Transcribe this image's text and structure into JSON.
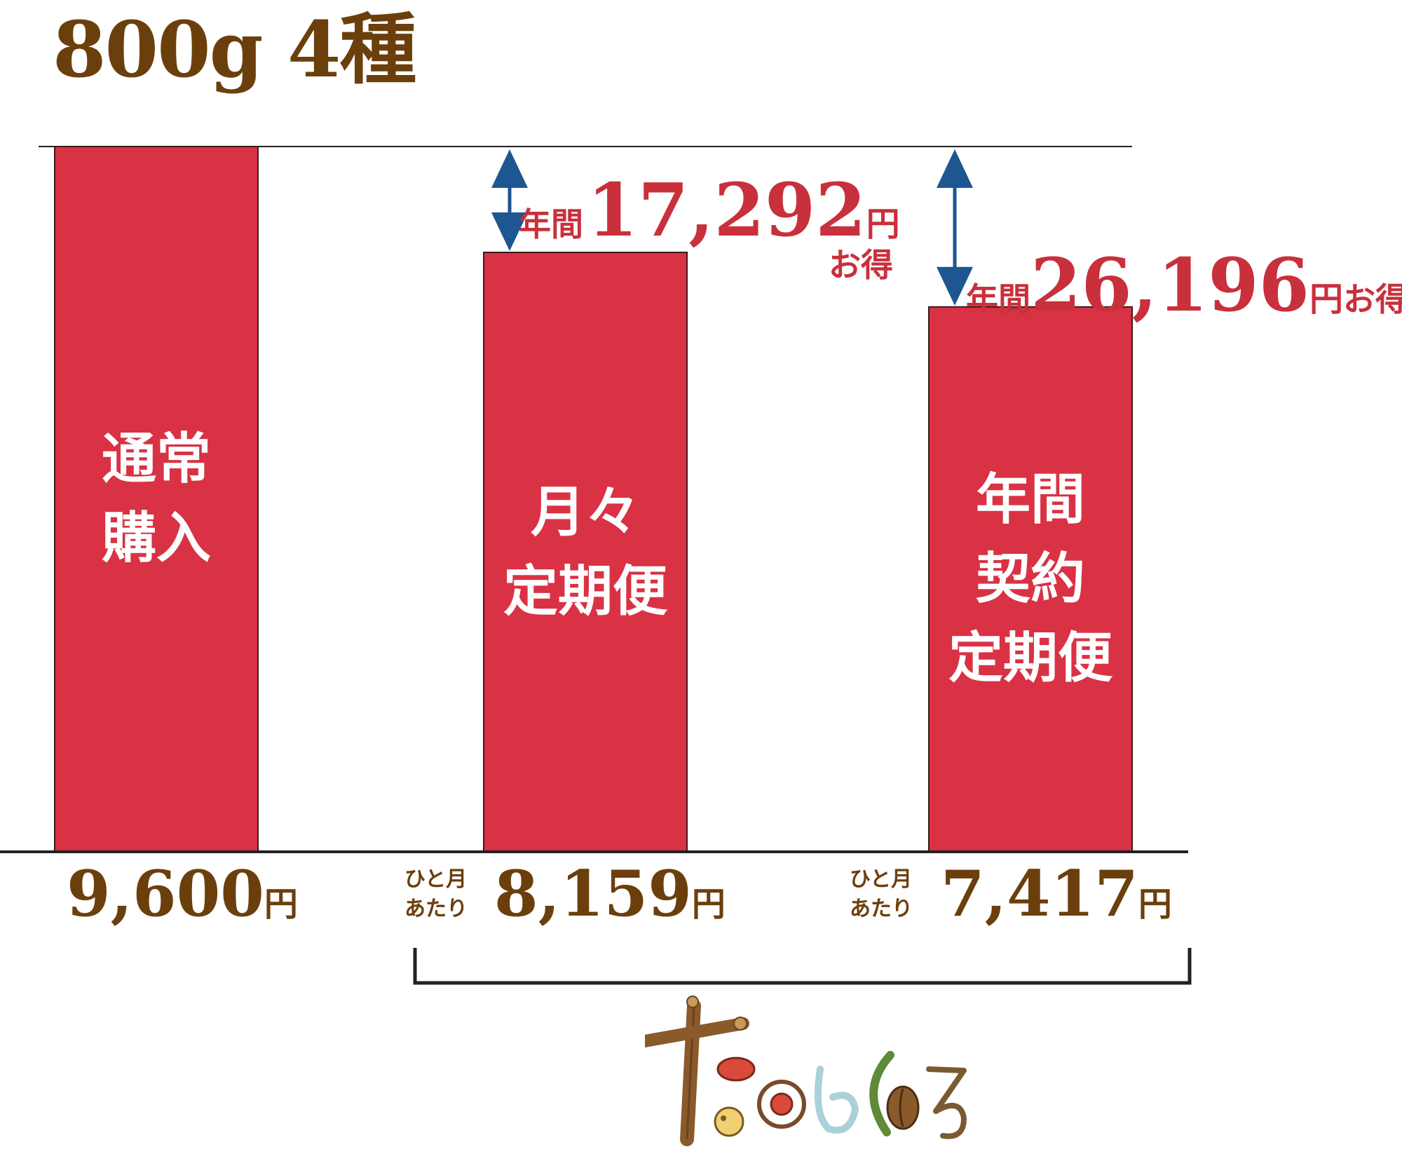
{
  "title": "800g 4種",
  "colors": {
    "bar": "#d93244",
    "arrow": "#1d5691",
    "brown": "#6b3f0c",
    "saving": "#c8303c"
  },
  "chart_data": {
    "type": "bar",
    "categories": [
      "通常購入",
      "月々定期便",
      "年間契約定期便"
    ],
    "values": [
      9600,
      8159,
      7417
    ],
    "ylim": [
      0,
      9600
    ],
    "grid": false,
    "bars": [
      {
        "label": "通常購入",
        "label_lines": "通常\n購入",
        "value": 9600,
        "note": "",
        "value_text": "9,600",
        "unit": "円"
      },
      {
        "label": "月々定期便",
        "label_lines": "月々\n定期便",
        "value": 8159,
        "note": "ひと月\nあたり",
        "value_text": "8,159",
        "unit": "円"
      },
      {
        "label": "年間契約定期便",
        "label_lines": "年間\n契約\n定期便",
        "value": 7417,
        "note": "ひと月\nあたり",
        "value_text": "7,417",
        "unit": "円"
      }
    ],
    "annotations": [
      {
        "prefix": "年間",
        "amount": "17,292",
        "unit": "円",
        "suffix": "お得",
        "value": 17292
      },
      {
        "prefix": "年間",
        "amount": "26,196",
        "unit": "円",
        "suffix": "お得",
        "value": 26196
      }
    ]
  },
  "logo": {
    "icon": "tanomikuru-logo"
  }
}
